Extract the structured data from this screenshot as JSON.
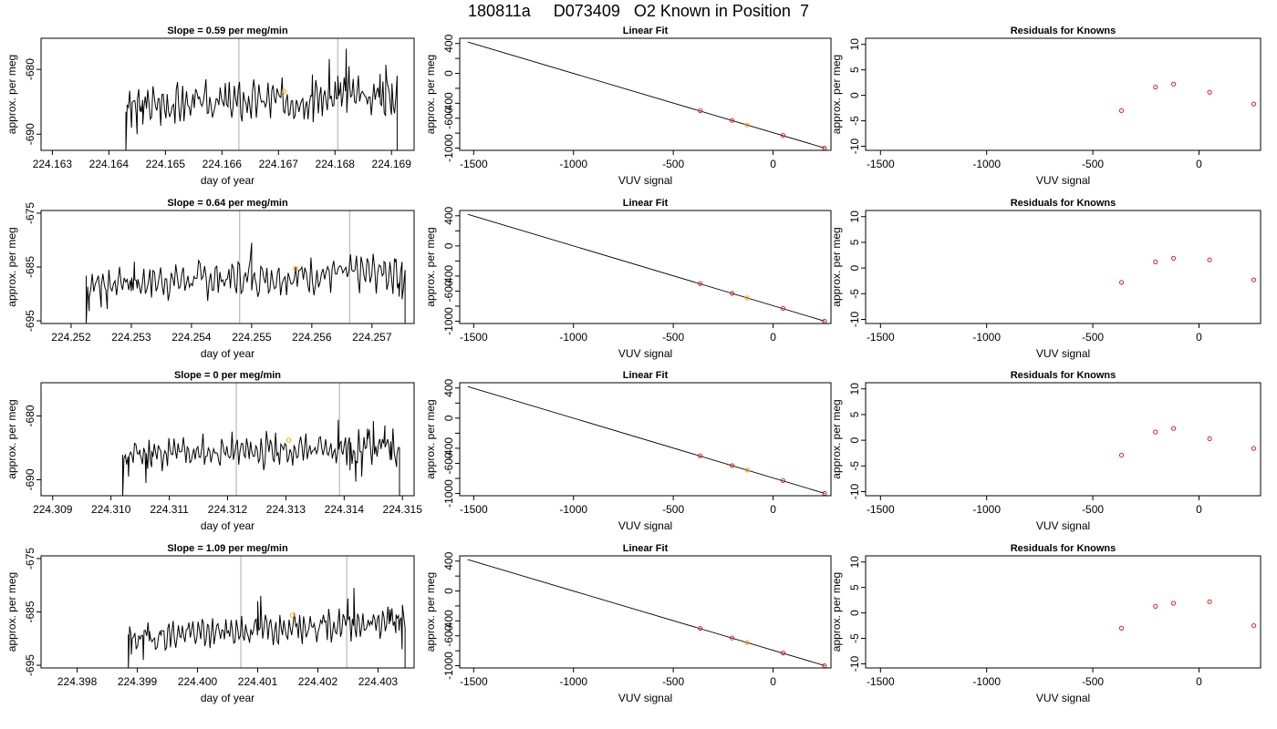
{
  "figure": {
    "title": "180811a     D073409   O2 Known in Position  7"
  },
  "colors": {
    "trace": "#000000",
    "marker_orange": "#FFA500",
    "marker_red": "#DF1F1F",
    "vline": "#BEBEBE",
    "frame": "#000000"
  },
  "chart_data": [
    {
      "type": "line",
      "row": 1,
      "col": 1,
      "title": "Slope =  0.59  per meg/min",
      "xlabel": "day of year",
      "ylabel": "approx. per meg",
      "xlim": [
        224.1628,
        224.1694
      ],
      "ylim": [
        -692.5,
        -675.2
      ],
      "xticks": [
        224.163,
        224.164,
        224.165,
        224.166,
        224.167,
        224.168,
        224.169
      ],
      "xticklabels": [
        "224.163",
        "224.164",
        "224.165",
        "224.166",
        "224.167",
        "224.168",
        "224.169"
      ],
      "yticks": [
        -690,
        -680
      ],
      "yticklabels": [
        "-690",
        "-680"
      ],
      "vlines": [
        224.1663,
        224.16805
      ],
      "marker": {
        "x": 224.1671,
        "y": -683.4
      },
      "trace": {
        "start": [
          224.1643,
          -692.5
        ],
        "end": [
          224.1691,
          -692.5
        ],
        "base": -684.8,
        "amp": 2.1,
        "trend": 1.6,
        "seed": 3,
        "anchors": [
          [
            224.1643,
            -692.5
          ],
          [
            224.1644,
            -689.0
          ],
          [
            224.1645,
            -690.0
          ],
          [
            224.16455,
            -686.5
          ],
          [
            224.1646,
            -688.5
          ],
          [
            224.16465,
            -684.5
          ],
          [
            224.1676,
            -680.8
          ],
          [
            224.1679,
            -678.4
          ],
          [
            224.16805,
            -681.0
          ],
          [
            224.1681,
            -682.0
          ],
          [
            224.1682,
            -676.8
          ],
          [
            224.16825,
            -679.5
          ],
          [
            224.1688,
            -680.7
          ],
          [
            224.1689,
            -679.3
          ],
          [
            224.169,
            -687.0
          ],
          [
            224.1691,
            -692.5
          ]
        ]
      }
    },
    {
      "type": "line",
      "row": 1,
      "col": 2,
      "title": "Linear Fit",
      "xlabel": "VUV signal",
      "ylabel": "approx. per meg",
      "xlim": [
        -1570,
        290
      ],
      "ylim": [
        -1030,
        470
      ],
      "xticks": [
        -1500,
        -1000,
        -500,
        0
      ],
      "xticklabels": [
        "-1500",
        "-1000",
        "-500",
        "0"
      ],
      "yticks": [
        -1000,
        -800,
        -600,
        -400,
        -200,
        0,
        200,
        400
      ],
      "yticklabels": [
        "-1000",
        "",
        "-600",
        "-400",
        "",
        "0",
        "",
        "400"
      ],
      "line": [
        [
          -1530,
          420
        ],
        [
          260,
          -1000
        ]
      ],
      "points": [
        {
          "x": -365,
          "y": -500,
          "color": "red"
        },
        {
          "x": -205,
          "y": -630,
          "color": "red"
        },
        {
          "x": -130,
          "y": -690,
          "color": "orange"
        },
        {
          "x": 50,
          "y": -830,
          "color": "red"
        },
        {
          "x": 258,
          "y": -1000,
          "color": "red"
        }
      ]
    },
    {
      "type": "scatter",
      "row": 1,
      "col": 3,
      "title": "Residuals for Knowns",
      "xlabel": "VUV signal",
      "ylabel": "approx. per meg",
      "xlim": [
        -1570,
        290
      ],
      "ylim": [
        -10.8,
        11.2
      ],
      "xticks": [
        -1500,
        -1000,
        -500,
        0
      ],
      "xticklabels": [
        "-1500",
        "-1000",
        "-500",
        "0"
      ],
      "yticks": [
        -10,
        -5,
        0,
        5,
        10
      ],
      "yticklabels": [
        "-10",
        "-5",
        "0",
        "5",
        "10"
      ],
      "points": [
        {
          "x": -365,
          "y": -3.0,
          "color": "red"
        },
        {
          "x": -205,
          "y": 1.6,
          "color": "red"
        },
        {
          "x": -120,
          "y": 2.2,
          "color": "red"
        },
        {
          "x": 50,
          "y": 0.6,
          "color": "red"
        },
        {
          "x": 258,
          "y": -1.7,
          "color": "red"
        }
      ]
    },
    {
      "type": "line",
      "row": 2,
      "col": 1,
      "title": "Slope =  0.64  per meg/min",
      "xlabel": "day of year",
      "ylabel": "approx. per meg",
      "xlim": [
        224.2515,
        224.2577
      ],
      "ylim": [
        -695.5,
        -674.5
      ],
      "xticks": [
        224.252,
        224.253,
        224.254,
        224.255,
        224.256,
        224.257
      ],
      "xticklabels": [
        "224.252",
        "224.253",
        "224.254",
        "224.255",
        "224.256",
        "224.257"
      ],
      "yticks": [
        -695,
        -685,
        -675
      ],
      "yticklabels": [
        "-695",
        "-685",
        "-675"
      ],
      "vlines": [
        224.2548,
        224.25663
      ],
      "marker": {
        "x": 224.25573,
        "y": -685.3
      },
      "trace": {
        "start": [
          224.25225,
          -695.5
        ],
        "end": [
          224.25755,
          -695.5
        ],
        "base": -687.0,
        "amp": 2.3,
        "trend": 2.2,
        "seed": 7,
        "anchors": [
          [
            224.25225,
            -695.5
          ],
          [
            224.2523,
            -693.2
          ],
          [
            224.2525,
            -692.5
          ],
          [
            224.2526,
            -692.8
          ],
          [
            224.253,
            -689.5
          ],
          [
            224.25305,
            -684.0
          ],
          [
            224.2531,
            -689.0
          ],
          [
            224.2549,
            -686.0
          ],
          [
            224.255,
            -680.5
          ],
          [
            224.25505,
            -686.0
          ],
          [
            224.2572,
            -684.0
          ],
          [
            224.2574,
            -683.5
          ],
          [
            224.25745,
            -690.5
          ],
          [
            224.2575,
            -691.0
          ],
          [
            224.25755,
            -695.5
          ]
        ]
      }
    },
    {
      "type": "line",
      "row": 2,
      "col": 2,
      "title": "Linear Fit",
      "xlabel": "VUV signal",
      "ylabel": "approx. per meg",
      "xlim": [
        -1570,
        290
      ],
      "ylim": [
        -1030,
        470
      ],
      "xticks": [
        -1500,
        -1000,
        -500,
        0
      ],
      "xticklabels": [
        "-1500",
        "-1000",
        "-500",
        "0"
      ],
      "yticks": [
        -1000,
        -800,
        -600,
        -400,
        -200,
        0,
        200,
        400
      ],
      "yticklabels": [
        "-1000",
        "",
        "-600",
        "-400",
        "",
        "0",
        "",
        "400"
      ],
      "line": [
        [
          -1530,
          420
        ],
        [
          260,
          -1000
        ]
      ],
      "points": [
        {
          "x": -365,
          "y": -500,
          "color": "red"
        },
        {
          "x": -205,
          "y": -630,
          "color": "red"
        },
        {
          "x": -130,
          "y": -690,
          "color": "orange"
        },
        {
          "x": 50,
          "y": -830,
          "color": "red"
        },
        {
          "x": 258,
          "y": -1000,
          "color": "red"
        }
      ]
    },
    {
      "type": "scatter",
      "row": 2,
      "col": 3,
      "title": "Residuals for Knowns",
      "xlabel": "VUV signal",
      "ylabel": "approx. per meg",
      "xlim": [
        -1570,
        290
      ],
      "ylim": [
        -10.8,
        11.2
      ],
      "xticks": [
        -1500,
        -1000,
        -500,
        0
      ],
      "xticklabels": [
        "-1500",
        "-1000",
        "-500",
        "0"
      ],
      "yticks": [
        -10,
        -5,
        0,
        5,
        10
      ],
      "yticklabels": [
        "-10",
        "-5",
        "0",
        "5",
        "10"
      ],
      "points": [
        {
          "x": -365,
          "y": -2.8,
          "color": "red"
        },
        {
          "x": -205,
          "y": 1.2,
          "color": "red"
        },
        {
          "x": -120,
          "y": 1.9,
          "color": "red"
        },
        {
          "x": 50,
          "y": 1.6,
          "color": "red"
        },
        {
          "x": 258,
          "y": -2.3,
          "color": "red"
        }
      ]
    },
    {
      "type": "line",
      "row": 3,
      "col": 1,
      "title": "Slope =  0  per meg/min",
      "xlabel": "day of year",
      "ylabel": "approx. per meg",
      "xlim": [
        224.3088,
        224.3152
      ],
      "ylim": [
        -692.5,
        -674.8
      ],
      "xticks": [
        224.309,
        224.31,
        224.311,
        224.312,
        224.313,
        224.314,
        224.315
      ],
      "xticklabels": [
        "224.309",
        "224.310",
        "224.311",
        "224.312",
        "224.313",
        "224.314",
        "224.315"
      ],
      "yticks": [
        -690,
        -680
      ],
      "yticklabels": [
        "-690",
        "-680"
      ],
      "vlines": [
        224.31215,
        224.31392
      ],
      "marker": {
        "x": 224.31305,
        "y": -683.8
      },
      "trace": {
        "start": [
          224.3102,
          -692.5
        ],
        "end": [
          224.31495,
          -692.5
        ],
        "base": -685.5,
        "amp": 1.8,
        "trend": 1.2,
        "seed": 11,
        "anchors": [
          [
            224.3102,
            -692.5
          ],
          [
            224.3103,
            -689.5
          ],
          [
            224.3105,
            -686.0
          ],
          [
            224.3106,
            -690.5
          ],
          [
            224.3107,
            -685.5
          ],
          [
            224.3139,
            -680.6
          ],
          [
            224.31395,
            -684.0
          ],
          [
            224.3141,
            -688.5
          ],
          [
            224.3142,
            -690.3
          ],
          [
            224.3143,
            -689.5
          ],
          [
            224.3144,
            -682.0
          ],
          [
            224.3145,
            -680.8
          ],
          [
            224.3147,
            -681.5
          ],
          [
            224.3148,
            -684.0
          ],
          [
            224.3149,
            -688.0
          ],
          [
            224.31495,
            -692.5
          ]
        ]
      }
    },
    {
      "type": "line",
      "row": 3,
      "col": 2,
      "title": "Linear Fit",
      "xlabel": "VUV signal",
      "ylabel": "approx. per meg",
      "xlim": [
        -1570,
        290
      ],
      "ylim": [
        -1030,
        470
      ],
      "xticks": [
        -1500,
        -1000,
        -500,
        0
      ],
      "xticklabels": [
        "-1500",
        "-1000",
        "-500",
        "0"
      ],
      "yticks": [
        -1000,
        -800,
        -600,
        -400,
        -200,
        0,
        200,
        400
      ],
      "yticklabels": [
        "-1000",
        "",
        "-600",
        "-400",
        "",
        "0",
        "",
        "400"
      ],
      "line": [
        [
          -1530,
          420
        ],
        [
          260,
          -1000
        ]
      ],
      "points": [
        {
          "x": -365,
          "y": -500,
          "color": "red"
        },
        {
          "x": -205,
          "y": -630,
          "color": "red"
        },
        {
          "x": -130,
          "y": -690,
          "color": "orange"
        },
        {
          "x": 50,
          "y": -830,
          "color": "red"
        },
        {
          "x": 258,
          "y": -1000,
          "color": "red"
        }
      ]
    },
    {
      "type": "scatter",
      "row": 3,
      "col": 3,
      "title": "Residuals for Knowns",
      "xlabel": "VUV signal",
      "ylabel": "approx. per meg",
      "xlim": [
        -1570,
        290
      ],
      "ylim": [
        -10.8,
        11.2
      ],
      "xticks": [
        -1500,
        -1000,
        -500,
        0
      ],
      "xticklabels": [
        "-1500",
        "-1000",
        "-500",
        "0"
      ],
      "yticks": [
        -10,
        -5,
        0,
        5,
        10
      ],
      "yticklabels": [
        "-10",
        "-5",
        "0",
        "5",
        "10"
      ],
      "points": [
        {
          "x": -365,
          "y": -2.9,
          "color": "red"
        },
        {
          "x": -205,
          "y": 1.6,
          "color": "red"
        },
        {
          "x": -120,
          "y": 2.3,
          "color": "red"
        },
        {
          "x": 50,
          "y": 0.3,
          "color": "red"
        },
        {
          "x": 258,
          "y": -1.6,
          "color": "red"
        }
      ]
    },
    {
      "type": "line",
      "row": 4,
      "col": 1,
      "title": "Slope =  1.09  per meg/min",
      "xlabel": "day of year",
      "ylabel": "approx. per meg",
      "xlim": [
        224.3974,
        224.4036
      ],
      "ylim": [
        -695.5,
        -674.5
      ],
      "xticks": [
        224.398,
        224.399,
        224.4,
        224.401,
        224.402,
        224.403
      ],
      "xticklabels": [
        "224.398",
        "224.399",
        "224.400",
        "224.401",
        "224.402",
        "224.403"
      ],
      "yticks": [
        -695,
        -685,
        -675
      ],
      "yticklabels": [
        "-695",
        "-685",
        "-675"
      ],
      "vlines": [
        224.40072,
        224.40248
      ],
      "marker": {
        "x": 224.40158,
        "y": -685.6
      },
      "trace": {
        "start": [
          224.39885,
          -695.5
        ],
        "end": [
          224.40345,
          -695.5
        ],
        "base": -688.2,
        "amp": 1.9,
        "trend": 3.2,
        "seed": 19,
        "anchors": [
          [
            224.39885,
            -695.5
          ],
          [
            224.3989,
            -693.0
          ],
          [
            224.399,
            -691.5
          ],
          [
            224.3991,
            -694.0
          ],
          [
            224.3992,
            -690.5
          ],
          [
            224.3993,
            -692.0
          ],
          [
            224.3994,
            -688.5
          ],
          [
            224.401,
            -683.0
          ],
          [
            224.40105,
            -682.0
          ],
          [
            224.4025,
            -682.5
          ],
          [
            224.4026,
            -680.5
          ],
          [
            224.4032,
            -684.5
          ],
          [
            224.4033,
            -685.5
          ],
          [
            224.40335,
            -688.5
          ],
          [
            224.4034,
            -692.0
          ],
          [
            224.40345,
            -695.5
          ]
        ]
      }
    },
    {
      "type": "line",
      "row": 4,
      "col": 2,
      "title": "Linear Fit",
      "xlabel": "VUV signal",
      "ylabel": "approx. per meg",
      "xlim": [
        -1570,
        290
      ],
      "ylim": [
        -1030,
        470
      ],
      "xticks": [
        -1500,
        -1000,
        -500,
        0
      ],
      "xticklabels": [
        "-1500",
        "-1000",
        "-500",
        "0"
      ],
      "yticks": [
        -1000,
        -800,
        -600,
        -400,
        -200,
        0,
        200,
        400
      ],
      "yticklabels": [
        "-1000",
        "",
        "-600",
        "-400",
        "",
        "0",
        "",
        "400"
      ],
      "line": [
        [
          -1530,
          420
        ],
        [
          260,
          -1000
        ]
      ],
      "points": [
        {
          "x": -365,
          "y": -500,
          "color": "red"
        },
        {
          "x": -205,
          "y": -630,
          "color": "red"
        },
        {
          "x": -130,
          "y": -690,
          "color": "orange"
        },
        {
          "x": 50,
          "y": -830,
          "color": "red"
        },
        {
          "x": 258,
          "y": -1000,
          "color": "red"
        }
      ]
    },
    {
      "type": "scatter",
      "row": 4,
      "col": 3,
      "title": "Residuals for Knowns",
      "xlabel": "VUV signal",
      "ylabel": "approx. per meg",
      "xlim": [
        -1570,
        290
      ],
      "ylim": [
        -10.8,
        11.2
      ],
      "xticks": [
        -1500,
        -1000,
        -500,
        0
      ],
      "xticklabels": [
        "-1500",
        "-1000",
        "-500",
        "0"
      ],
      "yticks": [
        -10,
        -5,
        0,
        5,
        10
      ],
      "yticklabels": [
        "-10",
        "-5",
        "0",
        "5",
        "10"
      ],
      "points": [
        {
          "x": -365,
          "y": -3.0,
          "color": "red"
        },
        {
          "x": -205,
          "y": 1.3,
          "color": "red"
        },
        {
          "x": -120,
          "y": 1.9,
          "color": "red"
        },
        {
          "x": 50,
          "y": 2.2,
          "color": "red"
        },
        {
          "x": 258,
          "y": -2.5,
          "color": "red"
        }
      ]
    }
  ]
}
